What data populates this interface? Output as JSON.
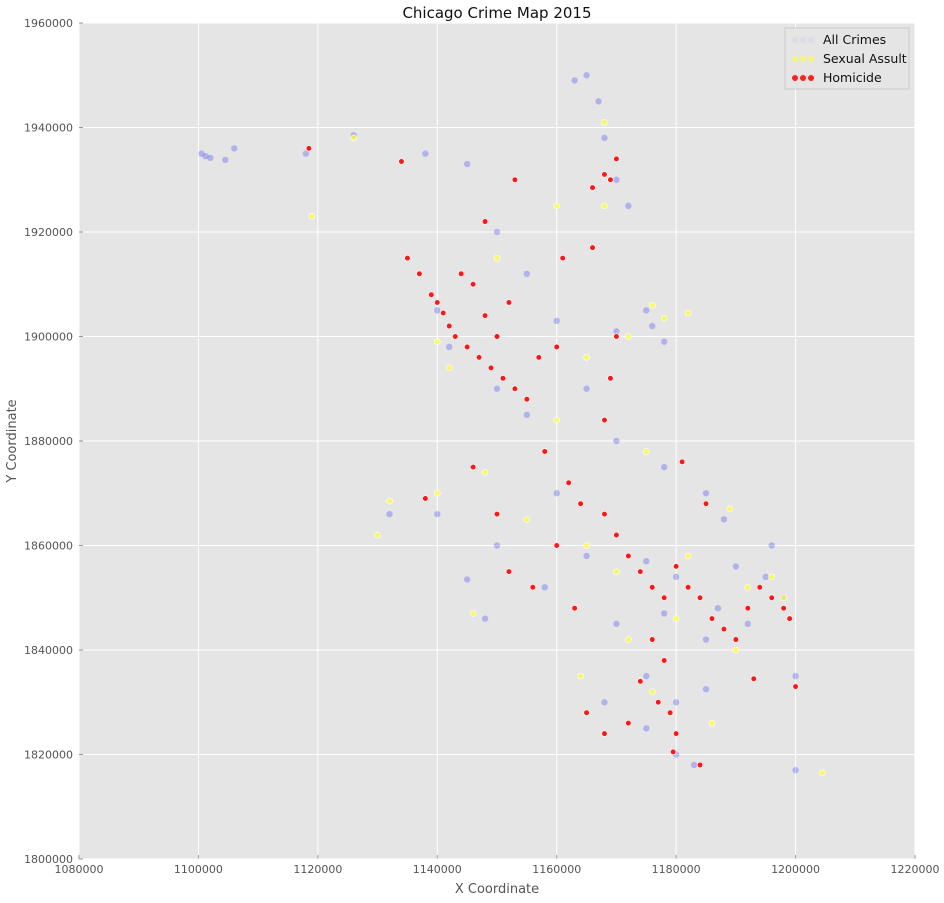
{
  "chart_data": {
    "type": "scatter",
    "title": "Chicago Crime Map 2015",
    "xlabel": "X Coordinate",
    "ylabel": "Y Coordinate",
    "xlim": [
      1080000,
      1220000
    ],
    "ylim": [
      1800000,
      1960000
    ],
    "x_ticks": [
      "1080000",
      "1100000",
      "1120000",
      "1140000",
      "1160000",
      "1180000",
      "1200000",
      "1220000"
    ],
    "y_ticks": [
      "1800000",
      "1820000",
      "1840000",
      "1860000",
      "1880000",
      "1900000",
      "1920000",
      "1940000",
      "1960000"
    ],
    "grid": true,
    "legend_position": "top-right",
    "colors": {
      "background": "#e5e5e5",
      "grid": "#ffffff",
      "all_crimes": "#0000ff",
      "sexual_assault": "#ffff33",
      "homicide": "#ff0000"
    },
    "series": [
      {
        "name": "All Crimes",
        "color": "#0000ff",
        "points": [
          [
            1100500,
            1935000
          ],
          [
            1101200,
            1934500
          ],
          [
            1102000,
            1934200
          ],
          [
            1104500,
            1933800
          ],
          [
            1106000,
            1936000
          ],
          [
            1118000,
            1935000
          ],
          [
            1126000,
            1938500
          ],
          [
            1138000,
            1935000
          ],
          [
            1145000,
            1933000
          ],
          [
            1163000,
            1949000
          ],
          [
            1165000,
            1950000
          ],
          [
            1167000,
            1945000
          ],
          [
            1168000,
            1938000
          ],
          [
            1170000,
            1930000
          ],
          [
            1172000,
            1925000
          ],
          [
            1150000,
            1920000
          ],
          [
            1155000,
            1912000
          ],
          [
            1140000,
            1905000
          ],
          [
            1142000,
            1898000
          ],
          [
            1150000,
            1900000
          ],
          [
            1160000,
            1903000
          ],
          [
            1170000,
            1901000
          ],
          [
            1176000,
            1902000
          ],
          [
            1178000,
            1899000
          ],
          [
            1175000,
            1905000
          ],
          [
            1150000,
            1890000
          ],
          [
            1155000,
            1885000
          ],
          [
            1165000,
            1890000
          ],
          [
            1170000,
            1880000
          ],
          [
            1178000,
            1875000
          ],
          [
            1185000,
            1870000
          ],
          [
            1188000,
            1865000
          ],
          [
            1160000,
            1870000
          ],
          [
            1150000,
            1860000
          ],
          [
            1145000,
            1853500
          ],
          [
            1165000,
            1858000
          ],
          [
            1175000,
            1857000
          ],
          [
            1180000,
            1854000
          ],
          [
            1190000,
            1856000
          ],
          [
            1195000,
            1854000
          ],
          [
            1198000,
            1850000
          ],
          [
            1170000,
            1845000
          ],
          [
            1178000,
            1847000
          ],
          [
            1185000,
            1842000
          ],
          [
            1192000,
            1845000
          ],
          [
            1175000,
            1835000
          ],
          [
            1180000,
            1830000
          ],
          [
            1185000,
            1832500
          ],
          [
            1175000,
            1825000
          ],
          [
            1200000,
            1835000
          ],
          [
            1200000,
            1817000
          ],
          [
            1183000,
            1818000
          ],
          [
            1180000,
            1820000
          ],
          [
            1168000,
            1830000
          ],
          [
            1132000,
            1866000
          ],
          [
            1140000,
            1866000
          ],
          [
            1148000,
            1846000
          ],
          [
            1158000,
            1852000
          ],
          [
            1187000,
            1848000
          ],
          [
            1196000,
            1860000
          ]
        ]
      },
      {
        "name": "Sexual Assult",
        "color": "#ffff33",
        "points": [
          [
            1126000,
            1938000
          ],
          [
            1119000,
            1923000
          ],
          [
            1140000,
            1899000
          ],
          [
            1142000,
            1894000
          ],
          [
            1168000,
            1941000
          ],
          [
            1168000,
            1925000
          ],
          [
            1176000,
            1906000
          ],
          [
            1178000,
            1903500
          ],
          [
            1182000,
            1904500
          ],
          [
            1165000,
            1896000
          ],
          [
            1172000,
            1900000
          ],
          [
            1160000,
            1884000
          ],
          [
            1175000,
            1878000
          ],
          [
            1189000,
            1867000
          ],
          [
            1148000,
            1874000
          ],
          [
            1130000,
            1862000
          ],
          [
            1132000,
            1868500
          ],
          [
            1140000,
            1870000
          ],
          [
            1155000,
            1865000
          ],
          [
            1165000,
            1860000
          ],
          [
            1170000,
            1855000
          ],
          [
            1182000,
            1858000
          ],
          [
            1192000,
            1852000
          ],
          [
            1198000,
            1850000
          ],
          [
            1172000,
            1842000
          ],
          [
            1180000,
            1846000
          ],
          [
            1190000,
            1840000
          ],
          [
            1176000,
            1832000
          ],
          [
            1186000,
            1826000
          ],
          [
            1204500,
            1816500
          ],
          [
            1146000,
            1847000
          ],
          [
            1164000,
            1835000
          ],
          [
            1196000,
            1854000
          ],
          [
            1150000,
            1915000
          ],
          [
            1160000,
            1925000
          ]
        ]
      },
      {
        "name": "Homicide",
        "color": "#ff0000",
        "points": [
          [
            1118500,
            1936000
          ],
          [
            1134000,
            1933500
          ],
          [
            1135000,
            1915000
          ],
          [
            1137000,
            1912000
          ],
          [
            1139000,
            1908000
          ],
          [
            1140000,
            1906500
          ],
          [
            1141000,
            1904500
          ],
          [
            1142000,
            1902000
          ],
          [
            1143000,
            1900000
          ],
          [
            1145000,
            1898000
          ],
          [
            1147000,
            1896000
          ],
          [
            1149000,
            1894000
          ],
          [
            1151000,
            1892000
          ],
          [
            1153000,
            1890000
          ],
          [
            1155000,
            1888000
          ],
          [
            1150000,
            1900000
          ],
          [
            1148000,
            1904000
          ],
          [
            1152000,
            1906500
          ],
          [
            1146000,
            1910000
          ],
          [
            1144000,
            1912000
          ],
          [
            1148000,
            1922000
          ],
          [
            1153000,
            1930000
          ],
          [
            1157000,
            1896000
          ],
          [
            1160000,
            1898000
          ],
          [
            1168000,
            1931000
          ],
          [
            1169000,
            1930000
          ],
          [
            1170000,
            1934000
          ],
          [
            1166000,
            1928500
          ],
          [
            1161000,
            1915000
          ],
          [
            1166000,
            1917000
          ],
          [
            1170000,
            1900000
          ],
          [
            1169000,
            1892000
          ],
          [
            1168000,
            1884000
          ],
          [
            1162000,
            1872000
          ],
          [
            1164000,
            1868000
          ],
          [
            1168000,
            1866000
          ],
          [
            1170000,
            1862000
          ],
          [
            1172000,
            1858000
          ],
          [
            1174000,
            1855000
          ],
          [
            1176000,
            1852000
          ],
          [
            1178000,
            1850000
          ],
          [
            1180000,
            1856000
          ],
          [
            1182000,
            1852000
          ],
          [
            1184000,
            1850000
          ],
          [
            1186000,
            1846000
          ],
          [
            1188000,
            1844000
          ],
          [
            1190000,
            1842000
          ],
          [
            1192000,
            1848000
          ],
          [
            1194000,
            1852000
          ],
          [
            1196000,
            1850000
          ],
          [
            1198000,
            1848000
          ],
          [
            1199000,
            1846000
          ],
          [
            1176000,
            1842000
          ],
          [
            1178000,
            1838000
          ],
          [
            1174000,
            1834000
          ],
          [
            1177000,
            1830000
          ],
          [
            1179000,
            1828000
          ],
          [
            1180000,
            1824000
          ],
          [
            1172000,
            1826000
          ],
          [
            1168000,
            1824000
          ],
          [
            1165000,
            1828000
          ],
          [
            1179500,
            1820500
          ],
          [
            1184000,
            1818000
          ],
          [
            1200000,
            1833000
          ],
          [
            1160000,
            1860000
          ],
          [
            1156000,
            1852000
          ],
          [
            1152000,
            1855000
          ],
          [
            1163000,
            1848000
          ],
          [
            1181000,
            1876000
          ],
          [
            1185000,
            1868000
          ],
          [
            1158000,
            1878000
          ],
          [
            1146000,
            1875000
          ],
          [
            1138000,
            1869000
          ],
          [
            1150000,
            1866000
          ],
          [
            1193000,
            1834500
          ]
        ]
      }
    ]
  }
}
